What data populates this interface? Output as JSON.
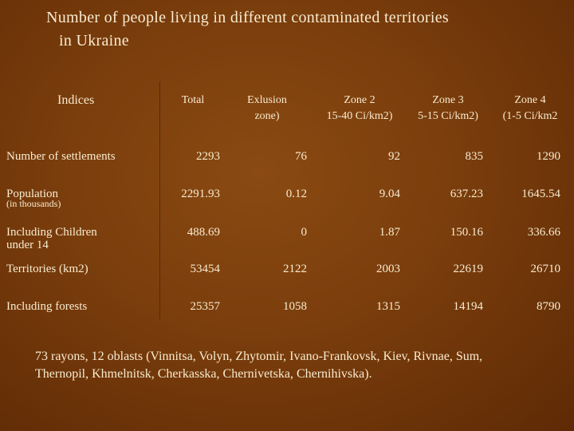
{
  "title_line1": "Number  of people  living  in different  contaminated territories",
  "title_line2": "in Ukraine",
  "indices_label": "Indices",
  "headers": {
    "total": "Total",
    "exclusion_1": "Exlusion",
    "exclusion_2": "zone)",
    "zone2_1": "Zone 2",
    "zone2_2": "15-40 Ci/km2)",
    "zone3_1": "Zone 3",
    "zone3_2": "5-15 Ci/km2)",
    "zone4_1": "Zone 4",
    "zone4_2": "(1-5 Ci/km2"
  },
  "rows": [
    {
      "label": "Number  of  settlements",
      "values": [
        "2293",
        "76",
        "92",
        "835",
        "1290"
      ]
    },
    {
      "label": "Population",
      "sublabel": "(in thousands)",
      "values": [
        "2291.93",
        "0.12",
        "9.04",
        "637.23",
        "1645.54"
      ]
    },
    {
      "label": "Including  Children",
      "label2": "under 14",
      "values": [
        "488.69",
        "0",
        "1.87",
        "150.16",
        "336.66"
      ]
    },
    {
      "label": "Territories (km2)",
      "values": [
        "53454",
        "2122",
        "2003",
        "22619",
        "26710"
      ]
    },
    {
      "label": "Including forests",
      "values": [
        "25357",
        "1058",
        "1315",
        "14194",
        "8790"
      ]
    }
  ],
  "footer_line1": "73  rayons,  12  oblasts  (Vinnitsa,  Volyn,  Zhytomir,  Ivano-Frankovsk,  Kiev,  Rivnae,  Sum,",
  "footer_line2": "Thernopil, Khmelnitsk, Cherkasska, Chernivetska, Chernihivska)."
}
